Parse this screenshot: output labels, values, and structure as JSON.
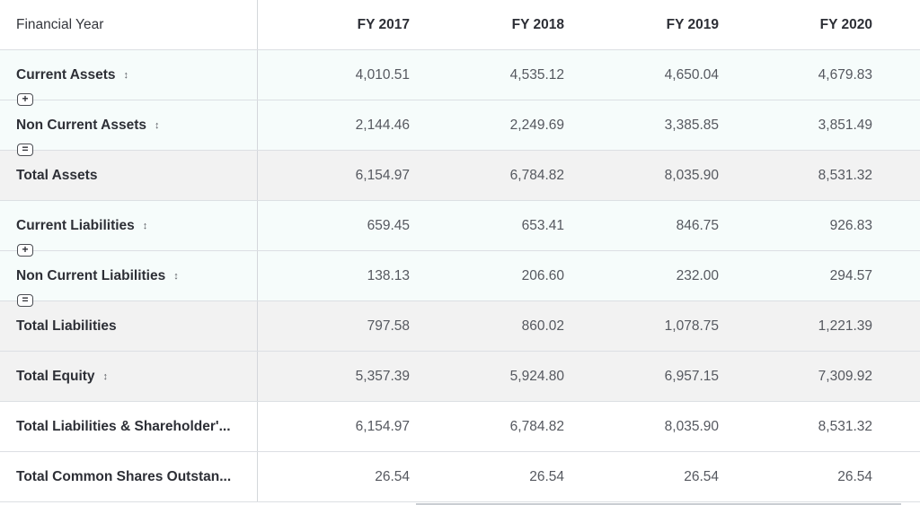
{
  "header": {
    "label": "Financial Year",
    "years": [
      "FY 2017",
      "FY 2018",
      "FY 2019",
      "FY 2020"
    ]
  },
  "rows": [
    {
      "label": "Current Assets",
      "sortable": true,
      "values": [
        "4,010.51",
        "4,535.12",
        "4,650.04",
        "4,679.83"
      ]
    },
    {
      "label": "Non Current Assets",
      "sortable": true,
      "values": [
        "2,144.46",
        "2,249.69",
        "3,385.85",
        "3,851.49"
      ]
    },
    {
      "label": "Total Assets",
      "sortable": false,
      "values": [
        "6,154.97",
        "6,784.82",
        "8,035.90",
        "8,531.32"
      ]
    },
    {
      "label": "Current Liabilities",
      "sortable": true,
      "values": [
        "659.45",
        "653.41",
        "846.75",
        "926.83"
      ]
    },
    {
      "label": "Non Current Liabilities",
      "sortable": true,
      "values": [
        "138.13",
        "206.60",
        "232.00",
        "294.57"
      ]
    },
    {
      "label": "Total Liabilities",
      "sortable": false,
      "values": [
        "797.58",
        "860.02",
        "1,078.75",
        "1,221.39"
      ]
    },
    {
      "label": "Total Equity",
      "sortable": true,
      "values": [
        "5,357.39",
        "5,924.80",
        "6,957.15",
        "7,309.92"
      ]
    },
    {
      "label": "Total Liabilities & Shareholder'...",
      "sortable": false,
      "values": [
        "6,154.97",
        "6,784.82",
        "8,035.90",
        "8,531.32"
      ]
    },
    {
      "label": "Total Common Shares Outstan...",
      "sortable": false,
      "values": [
        "26.54",
        "26.54",
        "26.54",
        "26.54"
      ]
    }
  ],
  "operators": {
    "plus": "+",
    "equals": "="
  },
  "icons": {
    "sort": "sort-updown-icon"
  },
  "colors": {
    "input_row_bg": "#f6fcfb",
    "total_row_bg": "#f2f2f2",
    "border": "#dcdfe3"
  }
}
